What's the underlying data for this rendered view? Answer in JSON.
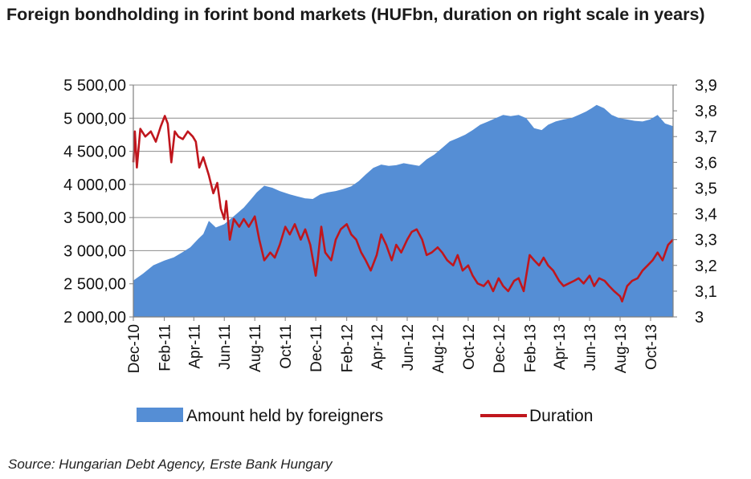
{
  "title": "Foreign bondholding in forint bond markets (HUFbn, duration on right scale in years)",
  "source": "Source: Hungarian Debt Agency, Erste Bank Hungary",
  "chart_data": {
    "type": "area",
    "title": "Foreign bondholding in forint bond markets (HUFbn, duration on right scale in years)",
    "x_axis": {
      "type": "date",
      "range": [
        "2010-12-01",
        "2013-11-15"
      ],
      "tick_labels": [
        "Dec-10",
        "Feb-11",
        "Apr-11",
        "Jun-11",
        "Aug-11",
        "Oct-11",
        "Dec-11",
        "Feb-12",
        "Apr-12",
        "Jun-12",
        "Aug-12",
        "Oct-12",
        "Dec-12",
        "Feb-13",
        "Apr-13",
        "Jun-13",
        "Aug-13",
        "Oct-13"
      ],
      "tick_dates": [
        "2010-12-01",
        "2011-02-01",
        "2011-04-01",
        "2011-06-01",
        "2011-08-01",
        "2011-10-01",
        "2011-12-01",
        "2012-02-01",
        "2012-04-01",
        "2012-06-01",
        "2012-08-01",
        "2012-10-01",
        "2012-12-01",
        "2013-02-01",
        "2013-04-01",
        "2013-06-01",
        "2013-08-01",
        "2013-10-01"
      ]
    },
    "y_left": {
      "range": [
        2000,
        5500
      ],
      "tick_values": [
        2000,
        2500,
        3000,
        3500,
        4000,
        4500,
        5000,
        5500
      ],
      "tick_labels": [
        "2 000,00",
        "2 500,00",
        "3 000,00",
        "3 500,00",
        "4 000,00",
        "4 500,00",
        "5 000,00",
        "5 500,00"
      ]
    },
    "y_right": {
      "range": [
        3.0,
        3.9
      ],
      "tick_values": [
        3.0,
        3.1,
        3.2,
        3.3,
        3.4,
        3.5,
        3.6,
        3.7,
        3.8,
        3.9
      ],
      "tick_labels": [
        "3",
        "3,1",
        "3,2",
        "3,3",
        "3,4",
        "3,5",
        "3,6",
        "3,7",
        "3,8",
        "3,9"
      ]
    },
    "grid": "horizontal",
    "legend": "bottom",
    "series": [
      {
        "name": "Amount held by foreigners",
        "type": "area",
        "axis": "left",
        "color": "#558ed5",
        "x": [
          "2010-12-01",
          "2010-12-20",
          "2011-01-10",
          "2011-02-01",
          "2011-02-20",
          "2011-03-10",
          "2011-03-25",
          "2011-04-10",
          "2011-04-20",
          "2011-05-01",
          "2011-05-15",
          "2011-06-01",
          "2011-06-20",
          "2011-07-10",
          "2011-07-25",
          "2011-08-05",
          "2011-08-20",
          "2011-09-05",
          "2011-09-20",
          "2011-10-10",
          "2011-10-25",
          "2011-11-10",
          "2011-11-25",
          "2011-12-10",
          "2011-12-25",
          "2012-01-10",
          "2012-01-25",
          "2012-02-10",
          "2012-02-25",
          "2012-03-10",
          "2012-03-25",
          "2012-04-10",
          "2012-04-25",
          "2012-05-10",
          "2012-05-25",
          "2012-06-10",
          "2012-06-25",
          "2012-07-10",
          "2012-07-25",
          "2012-08-10",
          "2012-08-25",
          "2012-09-10",
          "2012-09-25",
          "2012-10-10",
          "2012-10-25",
          "2012-11-10",
          "2012-11-25",
          "2012-12-10",
          "2012-12-25",
          "2013-01-10",
          "2013-01-25",
          "2013-02-10",
          "2013-02-25",
          "2013-03-10",
          "2013-03-25",
          "2013-04-10",
          "2013-04-25",
          "2013-05-10",
          "2013-05-25",
          "2013-06-05",
          "2013-06-15",
          "2013-06-30",
          "2013-07-15",
          "2013-07-30",
          "2013-08-15",
          "2013-08-30",
          "2013-09-15",
          "2013-09-30",
          "2013-10-15",
          "2013-10-30",
          "2013-11-15"
        ],
        "values": [
          2550,
          2650,
          2780,
          2850,
          2900,
          2980,
          3050,
          3180,
          3250,
          3450,
          3350,
          3400,
          3520,
          3650,
          3780,
          3880,
          3980,
          3950,
          3900,
          3850,
          3820,
          3790,
          3780,
          3850,
          3880,
          3900,
          3930,
          3970,
          4050,
          4150,
          4250,
          4300,
          4280,
          4290,
          4320,
          4300,
          4280,
          4380,
          4450,
          4550,
          4650,
          4700,
          4750,
          4820,
          4900,
          4950,
          5000,
          5050,
          5030,
          5050,
          5000,
          4850,
          4820,
          4900,
          4950,
          4980,
          5000,
          5050,
          5100,
          5150,
          5200,
          5150,
          5050,
          5000,
          4980,
          4960,
          4950,
          4980,
          5050,
          4920,
          4880
        ]
      },
      {
        "name": "Duration",
        "type": "line",
        "axis": "right",
        "color": "#c0161d",
        "x": [
          "2010-12-01",
          "2010-12-04",
          "2010-12-08",
          "2010-12-15",
          "2010-12-25",
          "2011-01-05",
          "2011-01-15",
          "2011-01-25",
          "2011-02-02",
          "2011-02-08",
          "2011-02-15",
          "2011-02-22",
          "2011-03-01",
          "2011-03-10",
          "2011-03-20",
          "2011-03-30",
          "2011-04-05",
          "2011-04-12",
          "2011-04-20",
          "2011-05-01",
          "2011-05-10",
          "2011-05-18",
          "2011-05-25",
          "2011-06-01",
          "2011-06-05",
          "2011-06-12",
          "2011-06-20",
          "2011-07-01",
          "2011-07-10",
          "2011-07-20",
          "2011-08-01",
          "2011-08-10",
          "2011-08-20",
          "2011-09-01",
          "2011-09-10",
          "2011-09-20",
          "2011-10-01",
          "2011-10-10",
          "2011-10-20",
          "2011-11-01",
          "2011-11-10",
          "2011-11-20",
          "2011-12-01",
          "2011-12-05",
          "2011-12-12",
          "2011-12-20",
          "2012-01-01",
          "2012-01-10",
          "2012-01-20",
          "2012-02-01",
          "2012-02-10",
          "2012-02-20",
          "2012-03-01",
          "2012-03-10",
          "2012-03-20",
          "2012-04-01",
          "2012-04-10",
          "2012-04-20",
          "2012-05-01",
          "2012-05-10",
          "2012-05-20",
          "2012-06-01",
          "2012-06-10",
          "2012-06-20",
          "2012-07-01",
          "2012-07-10",
          "2012-07-20",
          "2012-08-01",
          "2012-08-10",
          "2012-08-20",
          "2012-09-01",
          "2012-09-10",
          "2012-09-20",
          "2012-10-01",
          "2012-10-10",
          "2012-10-20",
          "2012-11-01",
          "2012-11-10",
          "2012-11-20",
          "2012-12-01",
          "2012-12-10",
          "2012-12-20",
          "2013-01-01",
          "2013-01-10",
          "2013-01-20",
          "2013-02-01",
          "2013-02-10",
          "2013-02-20",
          "2013-03-01",
          "2013-03-10",
          "2013-03-20",
          "2013-04-01",
          "2013-04-10",
          "2013-04-20",
          "2013-05-01",
          "2013-05-10",
          "2013-05-20",
          "2013-06-01",
          "2013-06-10",
          "2013-06-20",
          "2013-07-01",
          "2013-07-10",
          "2013-07-20",
          "2013-08-01",
          "2013-08-05",
          "2013-08-15",
          "2013-08-25",
          "2013-09-05",
          "2013-09-15",
          "2013-09-25",
          "2013-10-05",
          "2013-10-15",
          "2013-10-25",
          "2013-11-05",
          "2013-11-15"
        ],
        "values": [
          3.6,
          3.72,
          3.58,
          3.73,
          3.7,
          3.72,
          3.68,
          3.74,
          3.78,
          3.75,
          3.6,
          3.72,
          3.7,
          3.69,
          3.72,
          3.7,
          3.68,
          3.58,
          3.62,
          3.55,
          3.48,
          3.52,
          3.42,
          3.38,
          3.45,
          3.3,
          3.38,
          3.35,
          3.38,
          3.35,
          3.39,
          3.3,
          3.22,
          3.25,
          3.23,
          3.28,
          3.35,
          3.32,
          3.36,
          3.3,
          3.34,
          3.28,
          3.16,
          3.22,
          3.35,
          3.25,
          3.22,
          3.3,
          3.34,
          3.36,
          3.32,
          3.3,
          3.25,
          3.22,
          3.18,
          3.24,
          3.32,
          3.28,
          3.22,
          3.28,
          3.25,
          3.3,
          3.33,
          3.34,
          3.3,
          3.24,
          3.25,
          3.27,
          3.25,
          3.22,
          3.2,
          3.24,
          3.18,
          3.2,
          3.16,
          3.13,
          3.12,
          3.14,
          3.1,
          3.15,
          3.12,
          3.1,
          3.14,
          3.15,
          3.1,
          3.24,
          3.22,
          3.2,
          3.23,
          3.2,
          3.18,
          3.14,
          3.12,
          3.13,
          3.14,
          3.15,
          3.13,
          3.16,
          3.12,
          3.15,
          3.14,
          3.12,
          3.1,
          3.08,
          3.06,
          3.12,
          3.14,
          3.15,
          3.18,
          3.2,
          3.22,
          3.25,
          3.22,
          3.28,
          3.3
        ]
      }
    ]
  }
}
